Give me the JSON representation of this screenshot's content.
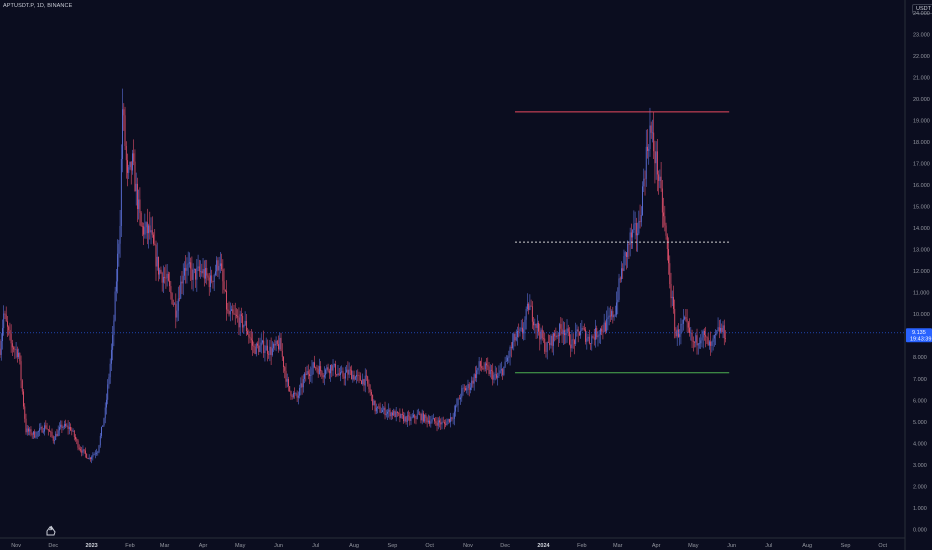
{
  "symbol_label": "APTUSDT.P, 1D, BINANCE",
  "currency": "USDT",
  "last_price": "9.135",
  "countdown": "19:43:39",
  "colors": {
    "background": "#0b0d1f",
    "up_candle": "#5b6fd6",
    "down_candle": "#e0506a",
    "resistance": "#e84a5f",
    "support": "#4caf50",
    "mid_level": "#d0d0d0",
    "price_line": "#2962ff"
  },
  "icons": [
    "tradingview-logo-icon"
  ],
  "chart_data": {
    "type": "candlestick",
    "title": "",
    "xlabel": "",
    "ylabel": "",
    "y_axis_side": "right",
    "ylim": [
      -0.4,
      24.6
    ],
    "grid": false,
    "y_tick_labels": [
      "24.000",
      "23.000",
      "22.000",
      "21.000",
      "20.000",
      "19.000",
      "18.000",
      "17.000",
      "16.000",
      "15.000",
      "14.000",
      "13.000",
      "12.000",
      "11.000",
      "10.000",
      "9.000",
      "8.000",
      "7.000",
      "6.000",
      "5.000",
      "4.000",
      "3.000",
      "2.000",
      "1.000",
      "0.000"
    ],
    "x_tick_labels": [
      "Nov",
      "Dec",
      "2023",
      "Feb",
      "Mar",
      "Apr",
      "May",
      "Jun",
      "Jul",
      "Aug",
      "Sep",
      "Oct",
      "Nov",
      "Dec",
      "2024",
      "Feb",
      "Mar",
      "Apr",
      "May",
      "Jun",
      "Jul",
      "Aug",
      "Sep",
      "Oct"
    ],
    "x_bold_labels": [
      "2023",
      "2024"
    ],
    "x_range": [
      "2022-10-19",
      "2024-10-19"
    ],
    "price_path": [
      [
        "2022-10-19",
        8.4
      ],
      [
        "2022-10-22",
        10.0
      ],
      [
        "2022-10-28",
        8.6
      ],
      [
        "2022-11-03",
        8.2
      ],
      [
        "2022-11-09",
        4.6
      ],
      [
        "2022-11-16",
        4.4
      ],
      [
        "2022-11-25",
        4.8
      ],
      [
        "2022-12-01",
        4.2
      ],
      [
        "2022-12-08",
        4.8
      ],
      [
        "2022-12-15",
        4.7
      ],
      [
        "2022-12-22",
        3.8
      ],
      [
        "2022-12-30",
        3.3
      ],
      [
        "2023-01-06",
        3.7
      ],
      [
        "2023-01-12",
        5.5
      ],
      [
        "2023-01-18",
        8.8
      ],
      [
        "2023-01-24",
        14.5
      ],
      [
        "2023-01-26",
        19.6
      ],
      [
        "2023-01-30",
        16.2
      ],
      [
        "2023-02-03",
        17.0
      ],
      [
        "2023-02-10",
        14.0
      ],
      [
        "2023-02-17",
        13.8
      ],
      [
        "2023-02-24",
        12.1
      ],
      [
        "2023-03-03",
        11.5
      ],
      [
        "2023-03-10",
        10.2
      ],
      [
        "2023-03-17",
        12.3
      ],
      [
        "2023-03-24",
        11.8
      ],
      [
        "2023-03-31",
        12.0
      ],
      [
        "2023-04-07",
        11.5
      ],
      [
        "2023-04-14",
        12.5
      ],
      [
        "2023-04-21",
        10.0
      ],
      [
        "2023-04-28",
        9.8
      ],
      [
        "2023-05-05",
        9.5
      ],
      [
        "2023-05-12",
        8.4
      ],
      [
        "2023-05-19",
        8.5
      ],
      [
        "2023-05-26",
        8.3
      ],
      [
        "2023-06-02",
        8.6
      ],
      [
        "2023-06-09",
        6.5
      ],
      [
        "2023-06-16",
        6.1
      ],
      [
        "2023-06-23",
        7.2
      ],
      [
        "2023-06-30",
        7.6
      ],
      [
        "2023-07-07",
        7.3
      ],
      [
        "2023-07-14",
        7.6
      ],
      [
        "2023-07-21",
        7.1
      ],
      [
        "2023-07-28",
        7.3
      ],
      [
        "2023-08-04",
        7.0
      ],
      [
        "2023-08-11",
        6.9
      ],
      [
        "2023-08-18",
        5.6
      ],
      [
        "2023-08-25",
        5.5
      ],
      [
        "2023-09-01",
        5.4
      ],
      [
        "2023-09-08",
        5.2
      ],
      [
        "2023-09-15",
        5.1
      ],
      [
        "2023-09-22",
        5.3
      ],
      [
        "2023-09-29",
        5.1
      ],
      [
        "2023-10-06",
        5.0
      ],
      [
        "2023-10-13",
        4.9
      ],
      [
        "2023-10-20",
        5.3
      ],
      [
        "2023-10-27",
        6.4
      ],
      [
        "2023-11-03",
        6.7
      ],
      [
        "2023-11-10",
        7.6
      ],
      [
        "2023-11-17",
        7.4
      ],
      [
        "2023-11-24",
        7.0
      ],
      [
        "2023-12-01",
        7.6
      ],
      [
        "2023-12-08",
        8.8
      ],
      [
        "2023-12-15",
        9.2
      ],
      [
        "2023-12-20",
        10.4
      ],
      [
        "2023-12-27",
        9.4
      ],
      [
        "2024-01-03",
        8.4
      ],
      [
        "2024-01-10",
        9.0
      ],
      [
        "2024-01-17",
        9.4
      ],
      [
        "2024-01-24",
        8.6
      ],
      [
        "2024-01-31",
        9.3
      ],
      [
        "2024-02-07",
        8.8
      ],
      [
        "2024-02-14",
        9.2
      ],
      [
        "2024-02-21",
        9.5
      ],
      [
        "2024-02-28",
        10.2
      ],
      [
        "2024-03-04",
        12.0
      ],
      [
        "2024-03-11",
        13.5
      ],
      [
        "2024-03-18",
        14.0
      ],
      [
        "2024-03-24",
        17.4
      ],
      [
        "2024-03-27",
        18.6
      ],
      [
        "2024-04-02",
        16.8
      ],
      [
        "2024-04-09",
        13.5
      ],
      [
        "2024-04-13",
        11.0
      ],
      [
        "2024-04-17",
        9.0
      ],
      [
        "2024-04-24",
        9.6
      ],
      [
        "2024-05-01",
        8.6
      ],
      [
        "2024-05-08",
        9.1
      ],
      [
        "2024-05-15",
        8.4
      ],
      [
        "2024-05-22",
        9.3
      ],
      [
        "2024-05-27",
        9.1
      ]
    ],
    "overlays": {
      "resistance_line": {
        "y": 19.4,
        "from": "2023-12-09",
        "to": "2024-05-30",
        "style": "solid"
      },
      "mid_line": {
        "y": 13.35,
        "from": "2023-12-09",
        "to": "2024-05-30",
        "style": "dashed"
      },
      "support_line": {
        "y": 7.28,
        "from": "2023-12-09",
        "to": "2024-05-30",
        "style": "solid"
      },
      "current_price_line": {
        "y": 9.135,
        "style": "dotted"
      }
    }
  }
}
